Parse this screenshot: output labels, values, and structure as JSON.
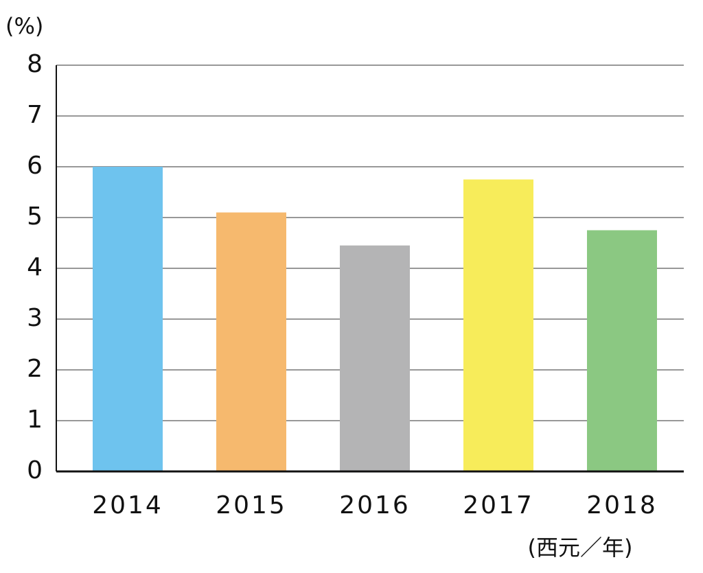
{
  "chart_data": {
    "type": "bar",
    "y_label": "(%)",
    "x_label": "(西元／年)",
    "categories": [
      "2014",
      "2015",
      "2016",
      "2017",
      "2018"
    ],
    "values": [
      6.0,
      5.1,
      4.45,
      5.75,
      4.75
    ],
    "colors": [
      "#6ec3ee",
      "#f6b96e",
      "#b4b4b5",
      "#f7ec5a",
      "#8bc882"
    ],
    "ylim": [
      0,
      8
    ],
    "yticks": [
      0,
      1,
      2,
      3,
      4,
      5,
      6,
      7,
      8
    ],
    "grid": true
  }
}
